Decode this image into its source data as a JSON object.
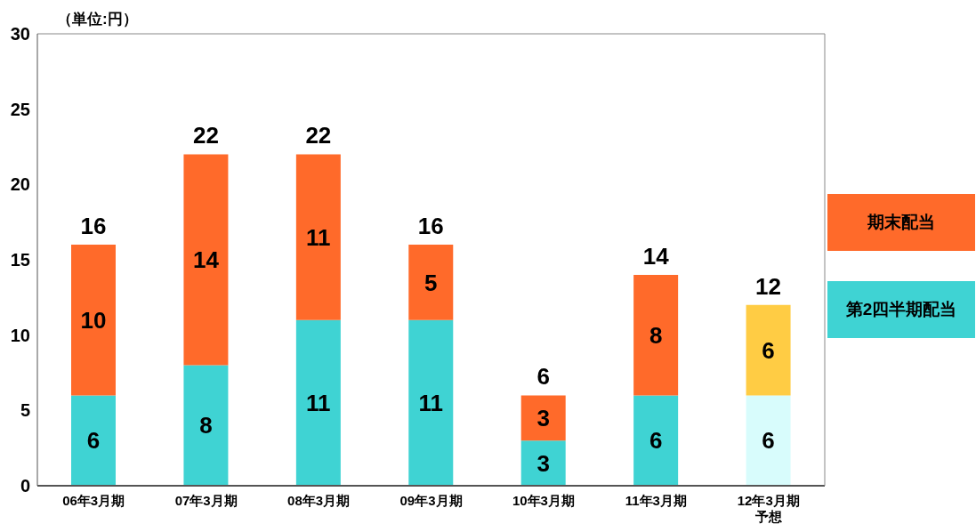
{
  "chart_data": {
    "type": "bar",
    "stacked": true,
    "categories": [
      "06年3月期",
      "07年3月期",
      "08年3月期",
      "09年3月期",
      "10年3月期",
      "11年3月期",
      "12年3月期予想"
    ],
    "series": [
      {
        "name": "第2四半期配当",
        "color": "#3fd3d3",
        "colors": [
          "#3fd3d3",
          "#3fd3d3",
          "#3fd3d3",
          "#3fd3d3",
          "#3fd3d3",
          "#3fd3d3",
          "#d8fcfc"
        ],
        "values": [
          6,
          8,
          11,
          11,
          3,
          6,
          6
        ]
      },
      {
        "name": "期末配当",
        "color": "#ff6a2a",
        "colors": [
          "#ff6a2a",
          "#ff6a2a",
          "#ff6a2a",
          "#ff6a2a",
          "#ff6a2a",
          "#ff6a2a",
          "#ffcc44"
        ],
        "values": [
          10,
          14,
          11,
          5,
          3,
          8,
          6
        ]
      }
    ],
    "totals": [
      "16",
      "22",
      "22",
      "16",
      "6",
      "14",
      "12"
    ],
    "data_labels": true,
    "ylim": [
      0,
      30
    ],
    "yticks": [
      0,
      5,
      10,
      15,
      20,
      25,
      30
    ],
    "grid": false,
    "legend": "right",
    "annotations": [
      "（単位:円）"
    ]
  }
}
